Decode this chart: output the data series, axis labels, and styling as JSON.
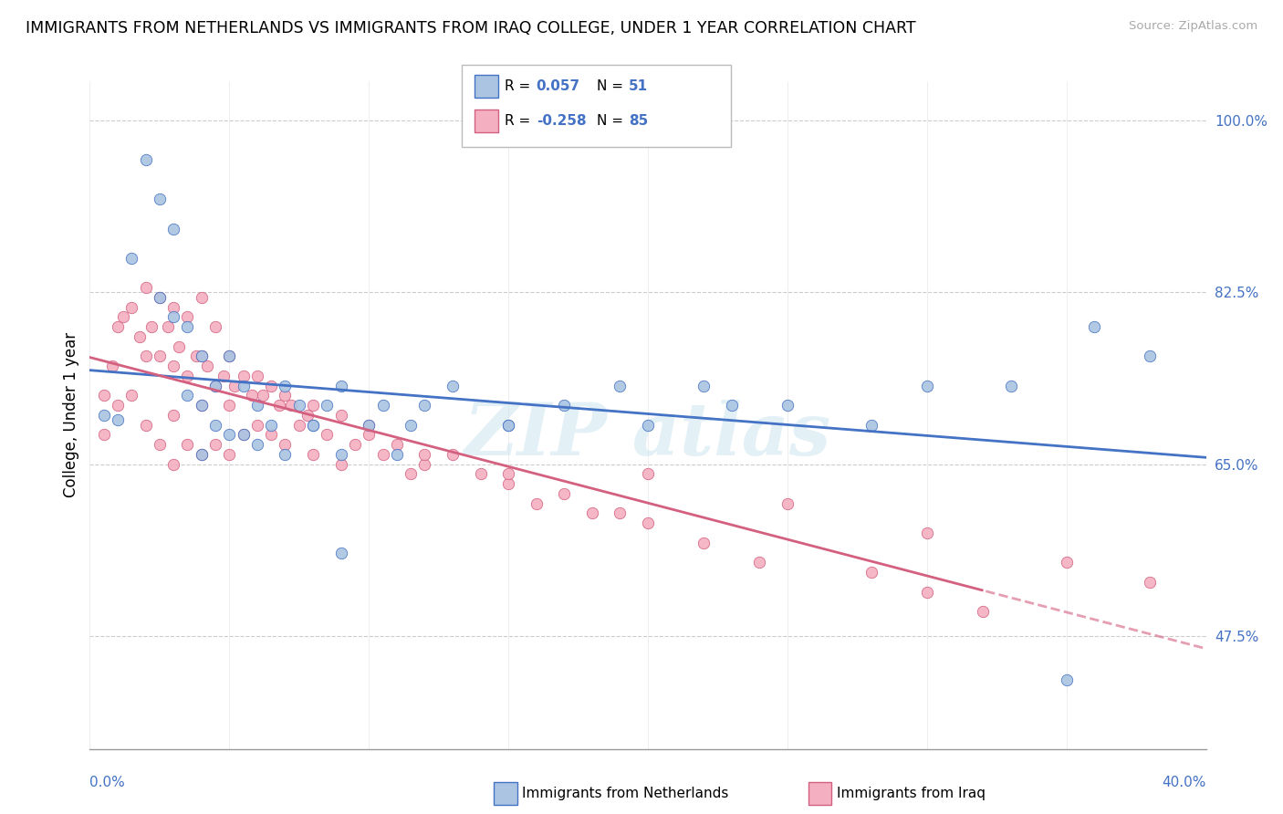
{
  "title": "IMMIGRANTS FROM NETHERLANDS VS IMMIGRANTS FROM IRAQ COLLEGE, UNDER 1 YEAR CORRELATION CHART",
  "source": "Source: ZipAtlas.com",
  "ylabel": "College, Under 1 year",
  "right_yticks": [
    1.0,
    0.825,
    0.65,
    0.475
  ],
  "right_ytick_labels": [
    "100.0%",
    "82.5%",
    "65.0%",
    "47.5%"
  ],
  "xmin": 0.0,
  "xmax": 0.4,
  "ymin": 0.36,
  "ymax": 1.04,
  "legend_R1": "0.057",
  "legend_N1": "51",
  "legend_R2": "-0.258",
  "legend_N2": "85",
  "series1_color": "#aac4e2",
  "series2_color": "#f4afc0",
  "line1_color": "#4472c4",
  "line2_color": "#d46080",
  "netherlands_x": [
    0.005,
    0.01,
    0.015,
    0.02,
    0.025,
    0.025,
    0.03,
    0.03,
    0.035,
    0.035,
    0.04,
    0.04,
    0.04,
    0.045,
    0.045,
    0.05,
    0.05,
    0.055,
    0.055,
    0.06,
    0.06,
    0.065,
    0.07,
    0.075,
    0.08,
    0.085,
    0.09,
    0.09,
    0.1,
    0.105,
    0.11,
    0.115,
    0.13,
    0.15,
    0.17,
    0.19,
    0.22,
    0.25,
    0.28,
    0.3,
    0.33,
    0.36,
    0.38,
    0.15,
    0.2,
    0.23,
    0.12,
    0.07,
    0.08,
    0.09,
    0.35
  ],
  "netherlands_y": [
    0.7,
    0.695,
    0.86,
    0.96,
    0.92,
    0.82,
    0.89,
    0.8,
    0.79,
    0.72,
    0.76,
    0.71,
    0.66,
    0.73,
    0.69,
    0.76,
    0.68,
    0.73,
    0.68,
    0.71,
    0.67,
    0.69,
    0.73,
    0.71,
    0.69,
    0.71,
    0.73,
    0.66,
    0.69,
    0.71,
    0.66,
    0.69,
    0.73,
    0.69,
    0.71,
    0.73,
    0.73,
    0.71,
    0.69,
    0.73,
    0.73,
    0.79,
    0.76,
    0.69,
    0.69,
    0.71,
    0.71,
    0.66,
    0.69,
    0.56,
    0.43
  ],
  "iraq_x": [
    0.005,
    0.005,
    0.008,
    0.01,
    0.01,
    0.012,
    0.015,
    0.015,
    0.018,
    0.02,
    0.02,
    0.02,
    0.022,
    0.025,
    0.025,
    0.025,
    0.028,
    0.03,
    0.03,
    0.03,
    0.03,
    0.032,
    0.035,
    0.035,
    0.035,
    0.038,
    0.04,
    0.04,
    0.04,
    0.04,
    0.042,
    0.045,
    0.045,
    0.045,
    0.048,
    0.05,
    0.05,
    0.05,
    0.052,
    0.055,
    0.055,
    0.058,
    0.06,
    0.06,
    0.062,
    0.065,
    0.065,
    0.068,
    0.07,
    0.07,
    0.072,
    0.075,
    0.078,
    0.08,
    0.08,
    0.085,
    0.09,
    0.09,
    0.095,
    0.1,
    0.105,
    0.11,
    0.115,
    0.12,
    0.13,
    0.14,
    0.15,
    0.16,
    0.18,
    0.2,
    0.22,
    0.24,
    0.28,
    0.3,
    0.32,
    0.2,
    0.25,
    0.3,
    0.35,
    0.38,
    0.1,
    0.12,
    0.15,
    0.17,
    0.19
  ],
  "iraq_y": [
    0.72,
    0.68,
    0.75,
    0.79,
    0.71,
    0.8,
    0.81,
    0.72,
    0.78,
    0.83,
    0.76,
    0.69,
    0.79,
    0.82,
    0.76,
    0.67,
    0.79,
    0.81,
    0.75,
    0.7,
    0.65,
    0.77,
    0.8,
    0.74,
    0.67,
    0.76,
    0.82,
    0.76,
    0.71,
    0.66,
    0.75,
    0.79,
    0.73,
    0.67,
    0.74,
    0.76,
    0.71,
    0.66,
    0.73,
    0.74,
    0.68,
    0.72,
    0.74,
    0.69,
    0.72,
    0.73,
    0.68,
    0.71,
    0.72,
    0.67,
    0.71,
    0.69,
    0.7,
    0.71,
    0.66,
    0.68,
    0.7,
    0.65,
    0.67,
    0.69,
    0.66,
    0.67,
    0.64,
    0.65,
    0.66,
    0.64,
    0.63,
    0.61,
    0.6,
    0.59,
    0.57,
    0.55,
    0.54,
    0.52,
    0.5,
    0.64,
    0.61,
    0.58,
    0.55,
    0.53,
    0.68,
    0.66,
    0.64,
    0.62,
    0.6
  ]
}
